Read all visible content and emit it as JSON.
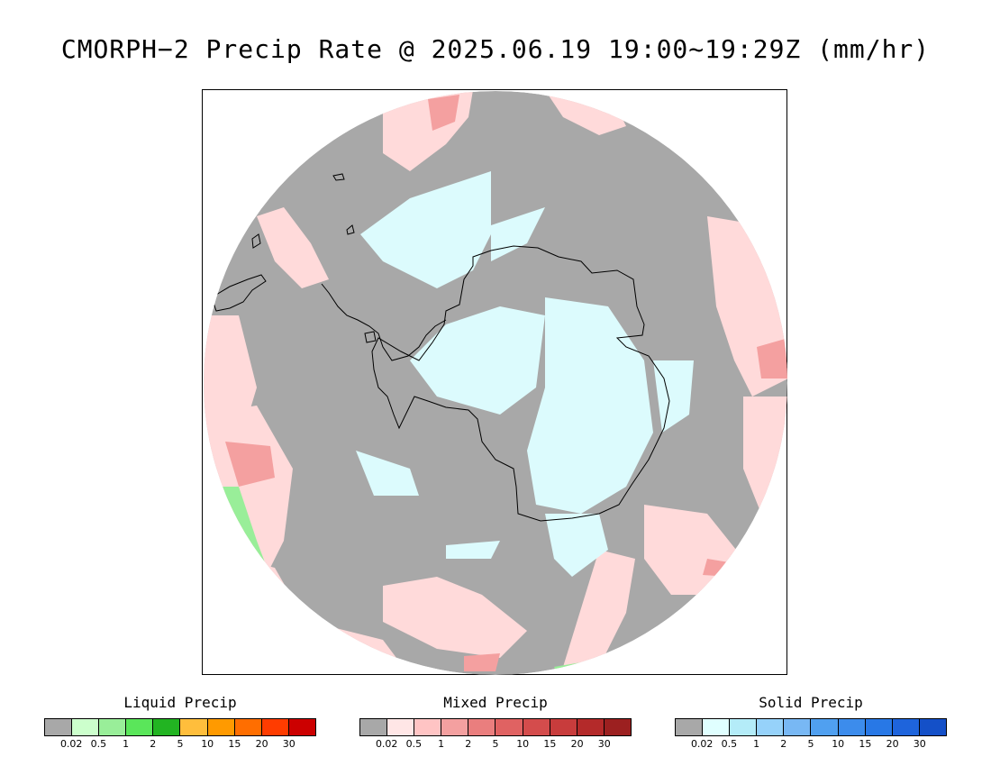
{
  "title": "CMORPH−2 Precip Rate @ 2025.06.19 19:00~19:29Z (mm/hr)",
  "map": {
    "projection": "south-polar-stereographic",
    "colors": {
      "no_precip": "#a8a8a8",
      "liquid_light": "#ccffcc",
      "liquid_med": "#99ee99",
      "mixed_light": "#ffdada",
      "mixed_med": "#f4a0a0",
      "solid_light": "#dcfbfd",
      "coastline": "#000000",
      "background": "#ffffff"
    }
  },
  "legends": [
    {
      "title": "Liquid Precip",
      "colors": [
        "#a8a8a8",
        "#ccffcc",
        "#99ee99",
        "#5ae65a",
        "#22b422",
        "#ffbe3c",
        "#ff9a00",
        "#ff6e00",
        "#ff3c00",
        "#cc0000"
      ],
      "ticks": [
        "0.02",
        "0.5",
        "1",
        "2",
        "5",
        "10",
        "15",
        "20",
        "30"
      ]
    },
    {
      "title": "Mixed Precip",
      "colors": [
        "#a8a8a8",
        "#ffe6e6",
        "#ffc4c4",
        "#f4a0a0",
        "#ea7e7e",
        "#e06262",
        "#d44c4c",
        "#c83c3c",
        "#b42a2a",
        "#9c2020"
      ],
      "ticks": [
        "0.02",
        "0.5",
        "1",
        "2",
        "5",
        "10",
        "15",
        "20",
        "30"
      ]
    },
    {
      "title": "Solid Precip",
      "colors": [
        "#a8a8a8",
        "#e0ffff",
        "#b4ecf8",
        "#96d2fa",
        "#78b8f4",
        "#50a0f0",
        "#3c8cec",
        "#2878e6",
        "#1e64dc",
        "#1450c8"
      ],
      "ticks": [
        "0.02",
        "0.5",
        "1",
        "2",
        "5",
        "10",
        "15",
        "20",
        "30"
      ]
    }
  ]
}
